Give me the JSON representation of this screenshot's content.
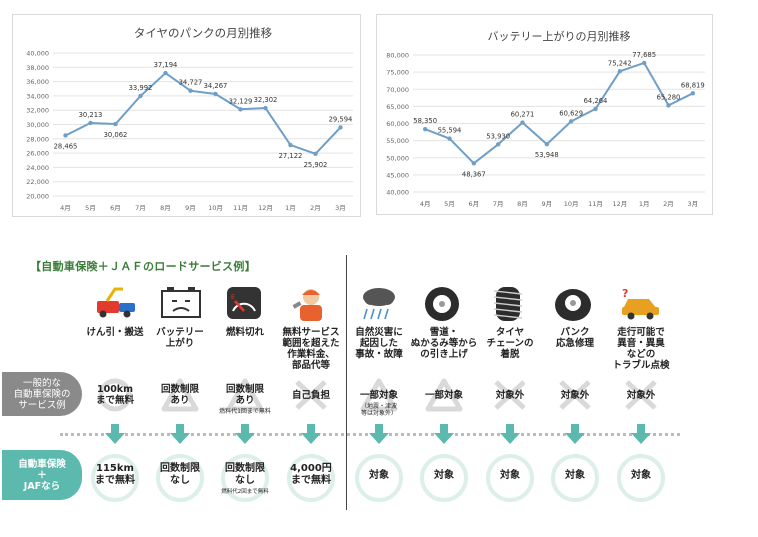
{
  "chart_data": [
    {
      "type": "line",
      "title": "タイヤのパンクの月別推移",
      "categories": [
        "4月",
        "5月",
        "6月",
        "7月",
        "8月",
        "9月",
        "10月",
        "11月",
        "12月",
        "1月",
        "2月",
        "3月"
      ],
      "values": [
        28465,
        30213,
        30062,
        33992,
        37194,
        34727,
        34267,
        32129,
        32302,
        27122,
        25902,
        29594
      ],
      "value_labels": [
        "28,465",
        "30,213",
        "30,062",
        "33,992",
        "37,194",
        "34,727",
        "34,267",
        "32,129",
        "32,302",
        "27,122",
        "25,902",
        "29,594"
      ],
      "ylim": [
        20000,
        40000
      ],
      "yticks": [
        "20,000",
        "22,000",
        "24,000",
        "26,000",
        "28,000",
        "30,000",
        "32,000",
        "34,000",
        "36,000",
        "38,000",
        "40,000"
      ],
      "grid": true,
      "color": "#6f9fc7"
    },
    {
      "type": "line",
      "title": "バッテリー上がりの月別推移",
      "categories": [
        "4月",
        "5月",
        "6月",
        "7月",
        "8月",
        "9月",
        "10月",
        "11月",
        "12月",
        "1月",
        "2月",
        "3月"
      ],
      "values": [
        58350,
        55594,
        48367,
        53930,
        60271,
        53948,
        60629,
        64264,
        75242,
        77685,
        65280,
        68819
      ],
      "value_labels": [
        "58,350",
        "55,594",
        "48,367",
        "53,930",
        "60,271",
        "53,948",
        "60,629",
        "64,264",
        "75,242",
        "77,685",
        "65,280",
        "68,819"
      ],
      "ylim": [
        40000,
        80000
      ],
      "yticks": [
        "40,000",
        "45,000",
        "50,000",
        "55,000",
        "60,000",
        "65,000",
        "70,000",
        "75,000",
        "80,000"
      ],
      "grid": true,
      "color": "#6f9fc7"
    }
  ],
  "section_title": "【自動車保険＋ＪＡＦのロードサービス例】",
  "row_headers": {
    "general": "一般的な\n自動車保険の\nサービス例",
    "jaf": "自動車保険\n＋\nJAFなら"
  },
  "services": [
    {
      "label": "けん引・搬送",
      "icon": "tow-truck-icon",
      "general_mark": "circle",
      "general_text": "100km\nまで無料",
      "general_sub": "",
      "jaf_text": "115km\nまで無料",
      "jaf_sub": ""
    },
    {
      "label": "バッテリー\n上がり",
      "icon": "battery-icon",
      "general_mark": "triangle",
      "general_text": "回数制限\nあり",
      "general_sub": "",
      "jaf_text": "回数制限\nなし",
      "jaf_sub": ""
    },
    {
      "label": "燃料切れ",
      "icon": "fuel-gauge-icon",
      "general_mark": "triangle",
      "general_text": "回数制限\nあり",
      "general_sub": "燃料代1回まで無料",
      "jaf_text": "回数制限\nなし",
      "jaf_sub": "燃料代2回まで無料"
    },
    {
      "label": "無料サービス\n範囲を超えた\n作業料金、\n部品代等",
      "icon": "mechanic-icon",
      "general_mark": "cross",
      "general_text": "自己負担",
      "general_sub": "",
      "jaf_text": "4,000円\nまで無料",
      "jaf_sub": ""
    },
    {
      "label": "自然災害に\n起因した\n事故・故障",
      "icon": "rain-cloud-icon",
      "general_mark": "triangle",
      "general_text": "一部対象",
      "general_sub": "（地震・津波\n等は対象外）",
      "jaf_text": "対象",
      "jaf_sub": ""
    },
    {
      "label": "雪道・\nぬかるみ等から\nの引き上げ",
      "icon": "tire-icon",
      "general_mark": "triangle",
      "general_text": "一部対象",
      "general_sub": "",
      "jaf_text": "対象",
      "jaf_sub": ""
    },
    {
      "label": "タイヤ\nチェーンの\n着脱",
      "icon": "tire-chain-icon",
      "general_mark": "cross",
      "general_text": "対象外",
      "general_sub": "",
      "jaf_text": "対象",
      "jaf_sub": ""
    },
    {
      "label": "パンク\n応急修理",
      "icon": "flat-tire-icon",
      "general_mark": "cross",
      "general_text": "対象外",
      "general_sub": "",
      "jaf_text": "対象",
      "jaf_sub": ""
    },
    {
      "label": "走行可能で\n異音・異臭\nなどの\nトラブル点検",
      "icon": "car-question-icon",
      "general_mark": "cross",
      "general_text": "対象外",
      "general_sub": "",
      "jaf_text": "対象",
      "jaf_sub": ""
    }
  ]
}
